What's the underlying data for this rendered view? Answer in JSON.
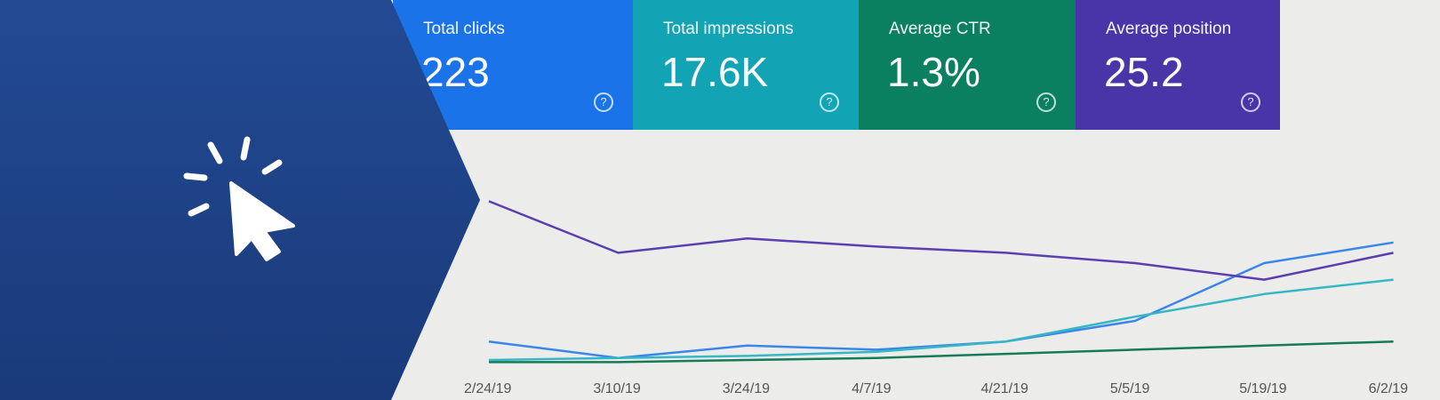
{
  "metrics": {
    "clicks": {
      "label": "Total clicks",
      "value": "223",
      "color": "#1a73e8"
    },
    "impressions": {
      "label": "Total impressions",
      "value": "17.6K",
      "color": "#12a4b4"
    },
    "ctr": {
      "label": "Average CTR",
      "value": "1.3%",
      "color": "#0b8060"
    },
    "position": {
      "label": "Average position",
      "value": "25.2",
      "color": "#4a35a8"
    }
  },
  "help_glyph": "?",
  "banner": {
    "color": "#1f4187",
    "icon": "cursor-click-icon"
  },
  "chart_data": {
    "type": "line",
    "x": [
      "2/24/19",
      "3/10/19",
      "3/24/19",
      "4/7/19",
      "4/21/19",
      "5/5/19",
      "5/19/19",
      "6/2/19"
    ],
    "series": [
      {
        "name": "Total clicks",
        "color": "#3a86ea",
        "values": [
          12,
          4,
          10,
          8,
          12,
          22,
          50,
          60
        ]
      },
      {
        "name": "Total impressions",
        "color": "#35b7c5",
        "values": [
          3,
          4,
          5,
          7,
          12,
          24,
          35,
          42
        ]
      },
      {
        "name": "Average CTR",
        "color": "#177a58",
        "values": [
          2,
          2,
          3,
          4,
          6,
          8,
          10,
          12
        ]
      },
      {
        "name": "Average position",
        "color": "#5a3fb0",
        "values": [
          80,
          55,
          62,
          58,
          55,
          50,
          42,
          55
        ]
      }
    ]
  }
}
